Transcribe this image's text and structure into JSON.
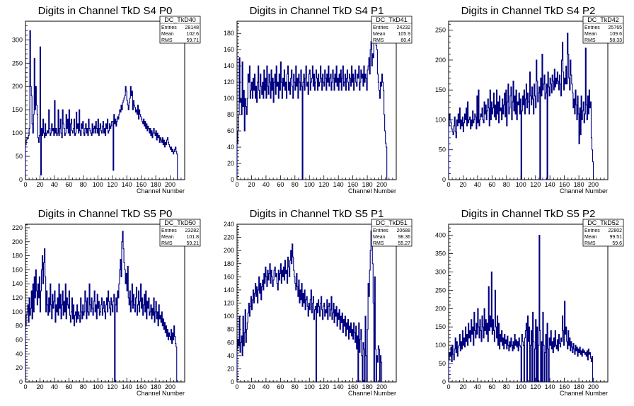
{
  "chart_data": [
    {
      "type": "histogram",
      "title": "Digits in Channel TkD S4 P0",
      "xlabel": "Channel Number",
      "xlim": [
        0,
        220
      ],
      "ylim": [
        0,
        340
      ],
      "xticks": [
        0,
        20,
        40,
        60,
        80,
        100,
        120,
        140,
        160,
        180,
        200
      ],
      "yticks": [
        0,
        50,
        100,
        150,
        200,
        250,
        300
      ],
      "stats": {
        "name": "DC_TkD40",
        "entries": "28148",
        "mean": "102.6",
        "rms": "59.71"
      },
      "bin_width": 1,
      "values": [
        75,
        85,
        90,
        88,
        95,
        110,
        320,
        200,
        180,
        120,
        100,
        140,
        260,
        150,
        200,
        160,
        140,
        90,
        80,
        95,
        285,
        10,
        110,
        95,
        130,
        100,
        90,
        120,
        95,
        100,
        105,
        100,
        150,
        110,
        95,
        100,
        120,
        105,
        110,
        95,
        170,
        100,
        110,
        95,
        100,
        150,
        95,
        110,
        130,
        100,
        90,
        150,
        120,
        110,
        95,
        100,
        140,
        110,
        130,
        100,
        150,
        95,
        120,
        130,
        105,
        100,
        110,
        130,
        95,
        100,
        145,
        110,
        120,
        100,
        150,
        105,
        95,
        120,
        110,
        125,
        100,
        95,
        110,
        120,
        100,
        110,
        95,
        130,
        110,
        105,
        100,
        95,
        120,
        100,
        110,
        115,
        100,
        125,
        110,
        100,
        130,
        95,
        110,
        120,
        105,
        100,
        115,
        125,
        100,
        110,
        95,
        120,
        110,
        130,
        100,
        105,
        120,
        110,
        115,
        125,
        125,
        20,
        140,
        120,
        130,
        115,
        125,
        135,
        130,
        140,
        150,
        145,
        160,
        150,
        165,
        170,
        175,
        180,
        200,
        190,
        170,
        160,
        150,
        165,
        175,
        200,
        180,
        190,
        150,
        170,
        160,
        155,
        145,
        150,
        140,
        160,
        130,
        150,
        140,
        135,
        130,
        125,
        120,
        130,
        115,
        125,
        110,
        120,
        105,
        115,
        110,
        100,
        110,
        95,
        105,
        90,
        100,
        110,
        100,
        95,
        105,
        85,
        100,
        90,
        95,
        80,
        90,
        85,
        80,
        90,
        75,
        85,
        70,
        80,
        75,
        85,
        90,
        80,
        75,
        70,
        65,
        70,
        60,
        65,
        55,
        60,
        65,
        70,
        60,
        55
      ]
    },
    {
      "type": "histogram",
      "title": "Digits in Channel TkD S4 P1",
      "xlabel": "Channel Number",
      "xlim": [
        0,
        220
      ],
      "ylim": [
        0,
        195
      ],
      "xticks": [
        0,
        20,
        40,
        60,
        80,
        100,
        120,
        140,
        160,
        180,
        200
      ],
      "yticks": [
        0,
        20,
        40,
        60,
        80,
        100,
        120,
        140,
        160,
        180
      ],
      "stats": {
        "name": "DC_TkD41",
        "entries": "24232",
        "mean": "105.9",
        "rms": "60.4"
      },
      "bin_width": 1,
      "values": [
        45,
        60,
        80,
        150,
        95,
        100,
        80,
        145,
        90,
        110,
        60,
        100,
        90,
        80,
        100,
        130,
        120,
        140,
        100,
        110,
        120,
        100,
        125,
        110,
        130,
        100,
        115,
        95,
        120,
        140,
        110,
        100,
        130,
        115,
        105,
        120,
        100,
        135,
        110,
        125,
        100,
        140,
        115,
        105,
        130,
        120,
        100,
        135,
        110,
        125,
        95,
        120,
        130,
        105,
        140,
        115,
        120,
        100,
        130,
        110,
        145,
        120,
        100,
        125,
        115,
        135,
        110,
        120,
        100,
        130,
        140,
        110,
        120,
        105,
        125,
        135,
        115,
        100,
        130,
        120,
        110,
        140,
        115,
        125,
        100,
        130,
        120,
        110,
        135,
        115,
        0,
        120,
        130,
        110,
        125,
        140,
        115,
        120,
        105,
        130,
        135,
        110,
        120,
        125,
        140,
        115,
        130,
        110,
        120,
        135,
        125,
        110,
        130,
        115,
        120,
        140,
        125,
        110,
        130,
        120,
        115,
        135,
        125,
        110,
        130,
        120,
        140,
        115,
        125,
        130,
        110,
        120,
        135,
        125,
        110,
        130,
        120,
        140,
        115,
        125,
        110,
        130,
        120,
        135,
        110,
        125,
        140,
        115,
        120,
        130,
        110,
        125,
        135,
        120,
        110,
        130,
        125,
        115,
        140,
        120,
        130,
        110,
        125,
        135,
        120,
        115,
        130,
        125,
        140,
        110,
        120,
        135,
        125,
        130,
        115,
        140,
        120,
        130,
        125,
        110,
        135,
        140,
        150,
        130,
        160,
        170,
        140,
        155,
        150,
        175,
        180,
        170,
        165,
        160,
        130,
        120,
        110,
        100,
        120,
        115,
        130,
        120,
        110,
        80,
        60,
        45,
        40,
        0
      ]
    },
    {
      "type": "histogram",
      "title": "Digits in Channel TkD S4 P2",
      "xlabel": "Channel Number",
      "xlim": [
        0,
        220
      ],
      "ylim": [
        0,
        265
      ],
      "xticks": [
        0,
        20,
        40,
        60,
        80,
        100,
        120,
        140,
        160,
        180,
        200
      ],
      "yticks": [
        0,
        50,
        100,
        150,
        200,
        250
      ],
      "stats": {
        "name": "DC_TkD42",
        "entries": "25765",
        "mean": "109.6",
        "rms": "58.33"
      },
      "bin_width": 1,
      "values": [
        90,
        110,
        100,
        95,
        85,
        80,
        75,
        90,
        105,
        80,
        70,
        100,
        90,
        110,
        95,
        120,
        85,
        100,
        90,
        105,
        80,
        95,
        110,
        100,
        120,
        90,
        130,
        95,
        100,
        105,
        85,
        100,
        90,
        115,
        95,
        100,
        110,
        105,
        85,
        140,
        95,
        150,
        90,
        100,
        110,
        105,
        120,
        100,
        95,
        130,
        110,
        125,
        100,
        115,
        135,
        120,
        90,
        150,
        100,
        130,
        110,
        120,
        145,
        105,
        125,
        100,
        150,
        110,
        130,
        95,
        140,
        115,
        120,
        100,
        135,
        110,
        125,
        145,
        105,
        150,
        90,
        130,
        160,
        110,
        120,
        140,
        155,
        100,
        130,
        165,
        115,
        140,
        110,
        150,
        100,
        130,
        125,
        145,
        110,
        135,
        0,
        115,
        140,
        125,
        150,
        110,
        135,
        160,
        120,
        145,
        130,
        110,
        180,
        140,
        125,
        155,
        135,
        110,
        160,
        140,
        120,
        200,
        165,
        130,
        145,
        155,
        0,
        170,
        140,
        210,
        150,
        160,
        175,
        135,
        145,
        160,
        0,
        180,
        155,
        140,
        170,
        160,
        145,
        175,
        165,
        150,
        185,
        155,
        170,
        160,
        180,
        165,
        150,
        175,
        160,
        140,
        200,
        230,
        180,
        150,
        170,
        160,
        190,
        160,
        245,
        210,
        170,
        150,
        200,
        175,
        160,
        145,
        120,
        135,
        110,
        150,
        125,
        100,
        140,
        110,
        60,
        120,
        75,
        140,
        100,
        115,
        130,
        95,
        110,
        220,
        125,
        100,
        140,
        110,
        150,
        120,
        130,
        70,
        50,
        30,
        0
      ]
    },
    {
      "type": "histogram",
      "title": "Digits in Channel TkD S5 P0",
      "xlabel": "Channel Number",
      "xlim": [
        0,
        220
      ],
      "ylim": [
        0,
        225
      ],
      "xticks": [
        0,
        20,
        40,
        60,
        80,
        100,
        120,
        140,
        160,
        180,
        200
      ],
      "yticks": [
        0,
        20,
        40,
        60,
        80,
        100,
        120,
        140,
        160,
        180,
        200,
        220
      ],
      "stats": {
        "name": "DC_TkD50",
        "entries": "23282",
        "mean": "101.8",
        "rms": "59.21"
      },
      "bin_width": 1,
      "values": [
        80,
        95,
        100,
        110,
        85,
        120,
        95,
        105,
        130,
        90,
        140,
        100,
        150,
        120,
        160,
        130,
        110,
        140,
        120,
        150,
        100,
        130,
        160,
        180,
        140,
        170,
        190,
        150,
        100,
        130,
        110,
        95,
        120,
        100,
        140,
        110,
        90,
        125,
        105,
        115,
        130,
        85,
        110,
        100,
        120,
        95,
        140,
        105,
        125,
        90,
        110,
        130,
        95,
        115,
        100,
        140,
        90,
        120,
        110,
        105,
        130,
        95,
        85,
        100,
        120,
        90,
        110,
        80,
        95,
        100,
        85,
        110,
        90,
        100,
        95,
        85,
        120,
        100,
        90,
        110,
        95,
        100,
        130,
        115,
        90,
        120,
        100,
        95,
        140,
        110,
        100,
        120,
        105,
        95,
        115,
        130,
        100,
        110,
        90,
        125,
        105,
        115,
        95,
        100,
        110,
        120,
        95,
        105,
        115,
        100,
        90,
        110,
        120,
        100,
        130,
        115,
        105,
        95,
        120,
        110,
        100,
        115,
        125,
        0,
        110,
        120,
        100,
        130,
        120,
        140,
        160,
        175,
        150,
        200,
        215,
        190,
        170,
        160,
        140,
        155,
        130,
        165,
        120,
        110,
        130,
        100,
        115,
        140,
        105,
        125,
        110,
        100,
        120,
        135,
        95,
        110,
        130,
        100,
        115,
        140,
        105,
        120,
        95,
        110,
        125,
        100,
        130,
        90,
        115,
        105,
        120,
        95,
        100,
        110,
        90,
        105,
        95,
        120,
        85,
        100,
        115,
        90,
        100,
        80,
        110,
        90,
        95,
        85,
        100,
        80,
        90,
        75,
        85,
        70,
        80,
        65,
        75,
        60,
        70,
        65,
        60,
        75,
        55,
        70,
        60,
        80,
        65,
        55,
        50,
        0
      ]
    },
    {
      "type": "histogram",
      "title": "Digits in Channel TkD S5 P1",
      "xlabel": "Channel Number",
      "xlim": [
        0,
        220
      ],
      "ylim": [
        0,
        240
      ],
      "xticks": [
        0,
        20,
        40,
        60,
        80,
        100,
        120,
        140,
        160,
        180,
        200
      ],
      "yticks": [
        0,
        20,
        40,
        60,
        80,
        100,
        120,
        140,
        160,
        180,
        200,
        220,
        240
      ],
      "stats": {
        "name": "DC_TkD51",
        "entries": "20688",
        "mean": "98.36",
        "rms": "55.27"
      },
      "bin_width": 1,
      "values": [
        50,
        65,
        55,
        100,
        45,
        60,
        70,
        40,
        100,
        55,
        75,
        110,
        60,
        80,
        90,
        105,
        120,
        100,
        115,
        130,
        110,
        125,
        140,
        120,
        135,
        150,
        130,
        145,
        120,
        140,
        160,
        135,
        150,
        125,
        145,
        155,
        140,
        165,
        150,
        175,
        160,
        145,
        170,
        155,
        165,
        180,
        150,
        170,
        160,
        145,
        155,
        170,
        175,
        160,
        165,
        150,
        140,
        170,
        155,
        165,
        180,
        150,
        170,
        160,
        175,
        155,
        185,
        165,
        170,
        150,
        190,
        175,
        160,
        185,
        200,
        180,
        210,
        190,
        170,
        160,
        150,
        140,
        165,
        145,
        130,
        155,
        120,
        140,
        125,
        150,
        115,
        135,
        120,
        140,
        110,
        125,
        130,
        115,
        100,
        120,
        110,
        125,
        140,
        105,
        120,
        130,
        95,
        110,
        115,
        0,
        120,
        105,
        125,
        115,
        100,
        120,
        130,
        110,
        95,
        115,
        120,
        100,
        110,
        105,
        125,
        95,
        115,
        120,
        100,
        110,
        130,
        95,
        105,
        120,
        90,
        110,
        100,
        115,
        85,
        105,
        95,
        110,
        80,
        100,
        90,
        105,
        75,
        95,
        85,
        100,
        70,
        90,
        80,
        95,
        65,
        85,
        75,
        90,
        70,
        80,
        65,
        90,
        75,
        60,
        85,
        50,
        70,
        0,
        90,
        45,
        65,
        80,
        40,
        0,
        60,
        50,
        0,
        100,
        40,
        0,
        80,
        150,
        130,
        170,
        200,
        230,
        210,
        180,
        120,
        0,
        160,
        50,
        0,
        40,
        30,
        55,
        50,
        0,
        40,
        30,
        0
      ]
    },
    {
      "type": "histogram",
      "title": "Digits in Channel TkD S5 P2",
      "xlabel": "Channel Number",
      "xlim": [
        0,
        220
      ],
      "ylim": [
        0,
        430
      ],
      "xticks": [
        0,
        20,
        40,
        60,
        80,
        100,
        120,
        140,
        160,
        180,
        200
      ],
      "yticks": [
        0,
        50,
        100,
        150,
        200,
        250,
        300,
        350,
        400
      ],
      "stats": {
        "name": "DC_TkD52",
        "entries": "22802",
        "mean": "99.51",
        "rms": "59.6"
      },
      "bin_width": 1,
      "values": [
        60,
        80,
        70,
        95,
        55,
        100,
        75,
        60,
        90,
        120,
        80,
        110,
        70,
        95,
        100,
        130,
        85,
        110,
        90,
        140,
        100,
        120,
        95,
        150,
        110,
        130,
        100,
        160,
        120,
        140,
        110,
        170,
        130,
        150,
        100,
        190,
        140,
        120,
        160,
        130,
        200,
        150,
        120,
        170,
        140,
        110,
        180,
        150,
        120,
        200,
        140,
        170,
        130,
        160,
        110,
        260,
        140,
        180,
        150,
        300,
        130,
        170,
        140,
        110,
        250,
        150,
        120,
        180,
        100,
        160,
        90,
        130,
        110,
        140,
        100,
        120,
        90,
        130,
        105,
        115,
        90,
        125,
        100,
        85,
        110,
        95,
        120,
        100,
        85,
        110,
        90,
        130,
        100,
        115,
        95,
        110,
        85,
        120,
        100,
        95,
        0,
        130,
        110,
        100,
        0,
        120,
        140,
        160,
        0,
        180,
        110,
        150,
        0,
        100,
        140,
        0,
        190,
        110,
        0,
        90,
        170,
        0,
        150,
        0,
        100,
        400,
        140,
        0,
        110,
        0,
        190,
        100,
        0,
        80,
        130,
        0,
        160,
        90,
        0,
        120,
        100,
        140,
        90,
        110,
        80,
        120,
        95,
        140,
        100,
        90,
        115,
        85,
        130,
        105,
        95,
        120,
        110,
        180,
        140,
        100,
        220,
        130,
        150,
        110,
        90,
        140,
        100,
        120,
        85,
        110,
        95,
        80,
        105,
        90,
        75,
        100,
        85,
        95,
        70,
        90,
        80,
        95,
        75,
        85,
        70,
        90,
        80,
        85,
        75,
        80,
        70,
        85,
        60,
        90,
        75,
        80,
        65,
        55,
        70,
        0
      ]
    }
  ]
}
